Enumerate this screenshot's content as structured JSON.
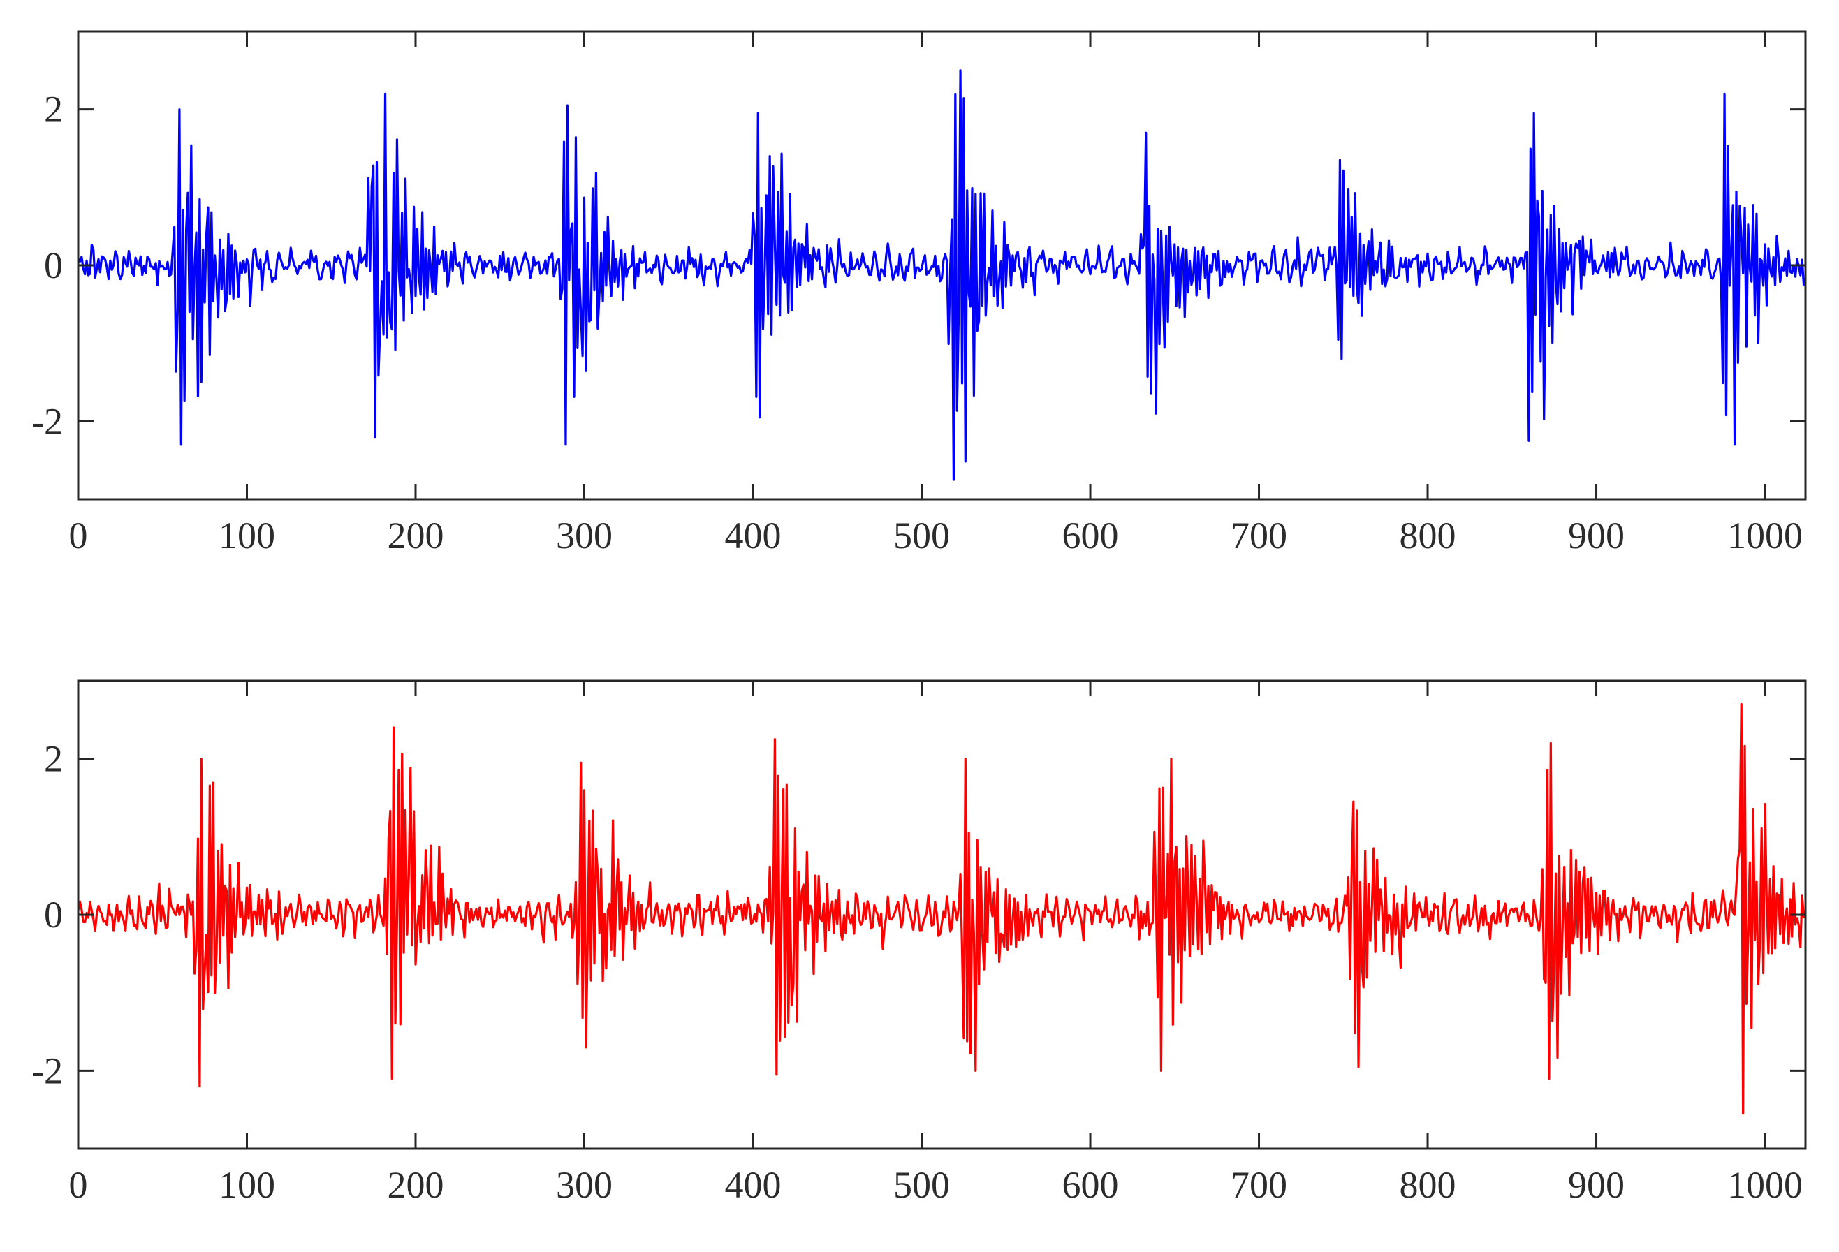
{
  "chart_data": [
    {
      "type": "line",
      "title": "",
      "xlabel": "",
      "ylabel": "",
      "xlim": [
        0,
        1024
      ],
      "ylim": [
        -3,
        3
      ],
      "grid": false,
      "xticks": [
        0,
        100,
        200,
        300,
        400,
        500,
        600,
        700,
        800,
        900,
        1000
      ],
      "xtick_labels": [
        "0",
        "100",
        "200",
        "300",
        "400",
        "500",
        "600",
        "700",
        "800",
        "900",
        "1000"
      ],
      "yticks": [
        2,
        0,
        -2
      ],
      "ytick_labels": [
        "2",
        "0",
        "-2"
      ],
      "series": [
        {
          "color": "#0000ff",
          "n_points": 1024,
          "background_amplitude": 0.15,
          "bursts": [
            {
              "onset": 57,
              "max": 2.0,
              "min": -2.3
            },
            {
              "onset": 172,
              "max": 2.2,
              "min": -2.2
            },
            {
              "onset": 285,
              "max": 2.05,
              "min": -2.3
            },
            {
              "onset": 400,
              "max": 1.95,
              "min": -1.95
            },
            {
              "onset": 515,
              "max": 2.5,
              "min": -2.75
            },
            {
              "onset": 630,
              "max": 1.7,
              "min": -1.9
            },
            {
              "onset": 745,
              "max": 1.35,
              "min": -1.2
            },
            {
              "onset": 858,
              "max": 1.95,
              "min": -2.25
            },
            {
              "onset": 973,
              "max": 2.2,
              "min": -2.3
            }
          ]
        }
      ]
    },
    {
      "type": "line",
      "title": "",
      "xlabel": "",
      "ylabel": "",
      "xlim": [
        0,
        1024
      ],
      "ylim": [
        -3,
        3
      ],
      "grid": false,
      "xticks": [
        0,
        100,
        200,
        300,
        400,
        500,
        600,
        700,
        800,
        900,
        1000
      ],
      "xtick_labels": [
        "0",
        "100",
        "200",
        "300",
        "400",
        "500",
        "600",
        "700",
        "800",
        "900",
        "1000"
      ],
      "yticks": [
        2,
        0,
        -2
      ],
      "ytick_labels": [
        "2",
        "0",
        "-2"
      ],
      "series": [
        {
          "color": "#ff0000",
          "n_points": 1024,
          "background_amplitude": 0.18,
          "bursts": [
            {
              "onset": 68,
              "max": 2.0,
              "min": -2.2
            },
            {
              "onset": 182,
              "max": 2.4,
              "min": -2.1
            },
            {
              "onset": 295,
              "max": 1.95,
              "min": -1.7
            },
            {
              "onset": 410,
              "max": 2.25,
              "min": -2.05
            },
            {
              "onset": 523,
              "max": 2.0,
              "min": -2.0
            },
            {
              "onset": 638,
              "max": 2.0,
              "min": -2.0
            },
            {
              "onset": 753,
              "max": 1.45,
              "min": -1.95
            },
            {
              "onset": 868,
              "max": 2.2,
              "min": -2.1
            },
            {
              "onset": 983,
              "max": 2.7,
              "min": -2.55
            }
          ]
        }
      ]
    }
  ]
}
